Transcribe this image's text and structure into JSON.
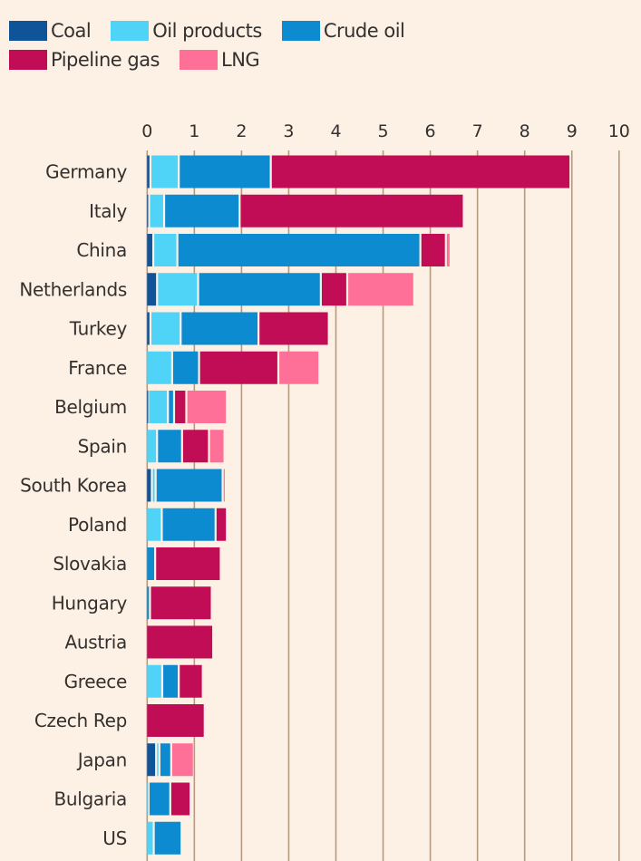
{
  "chart_data": {
    "type": "bar",
    "orientation": "horizontal",
    "stacked": true,
    "title": "",
    "xlabel": "",
    "ylabel": "",
    "xlim": [
      0,
      10
    ],
    "xticks": [
      "0",
      "1",
      "2",
      "3",
      "4",
      "5",
      "6",
      "7",
      "8",
      "9",
      "10"
    ],
    "grid": true,
    "legend_position": "top-left",
    "categories": [
      "Germany",
      "Italy",
      "China",
      "Netherlands",
      "Turkey",
      "France",
      "Belgium",
      "Spain",
      "South Korea",
      "Poland",
      "Slovakia",
      "Hungary",
      "Austria",
      "Greece",
      "Czech Rep",
      "Japan",
      "Bulgaria",
      "US"
    ],
    "series": [
      {
        "name": "Coal",
        "color": "#0f5499",
        "values": [
          0.07,
          0.04,
          0.13,
          0.21,
          0.07,
          0,
          0.02,
          0,
          0.1,
          0,
          0,
          0,
          0,
          0,
          0,
          0.19,
          0,
          0
        ]
      },
      {
        "name": "Oil products",
        "color": "#4fd3f7",
        "values": [
          0.6,
          0.32,
          0.51,
          0.87,
          0.64,
          0.53,
          0.42,
          0.21,
          0.08,
          0.31,
          0,
          0,
          0,
          0.32,
          0,
          0.07,
          0.03,
          0.14
        ]
      },
      {
        "name": "Crude oil",
        "color": "#0d8bd0",
        "values": [
          1.95,
          1.6,
          5.15,
          2.6,
          1.65,
          0.57,
          0.13,
          0.53,
          1.42,
          1.14,
          0.17,
          0.06,
          0,
          0.35,
          0,
          0.25,
          0.46,
          0.59
        ]
      },
      {
        "name": "Pipeline gas",
        "color": "#c10d56",
        "values": [
          6.35,
          4.75,
          0.54,
          0.56,
          1.49,
          1.68,
          0.26,
          0.57,
          0,
          0.24,
          1.39,
          1.31,
          1.4,
          0.51,
          1.22,
          0,
          0.43,
          0
        ]
      },
      {
        "name": "LNG",
        "color": "#ff7099",
        "values": [
          0,
          0,
          0.1,
          1.42,
          0,
          0.87,
          0.86,
          0.33,
          0.05,
          0,
          0,
          0,
          0,
          0,
          0,
          0.48,
          0,
          0
        ]
      }
    ]
  },
  "legend": {
    "rows": [
      [
        {
          "label": "Coal",
          "color": "#0f5499"
        },
        {
          "label": "Oil products",
          "color": "#4fd3f7"
        },
        {
          "label": "Crude oil",
          "color": "#0d8bd0"
        }
      ],
      [
        {
          "label": "Pipeline gas",
          "color": "#c10d56"
        },
        {
          "label": "LNG",
          "color": "#ff7099"
        }
      ]
    ]
  },
  "style": {
    "background": "#fdf1e6",
    "gridline_color": "#b39a80"
  }
}
